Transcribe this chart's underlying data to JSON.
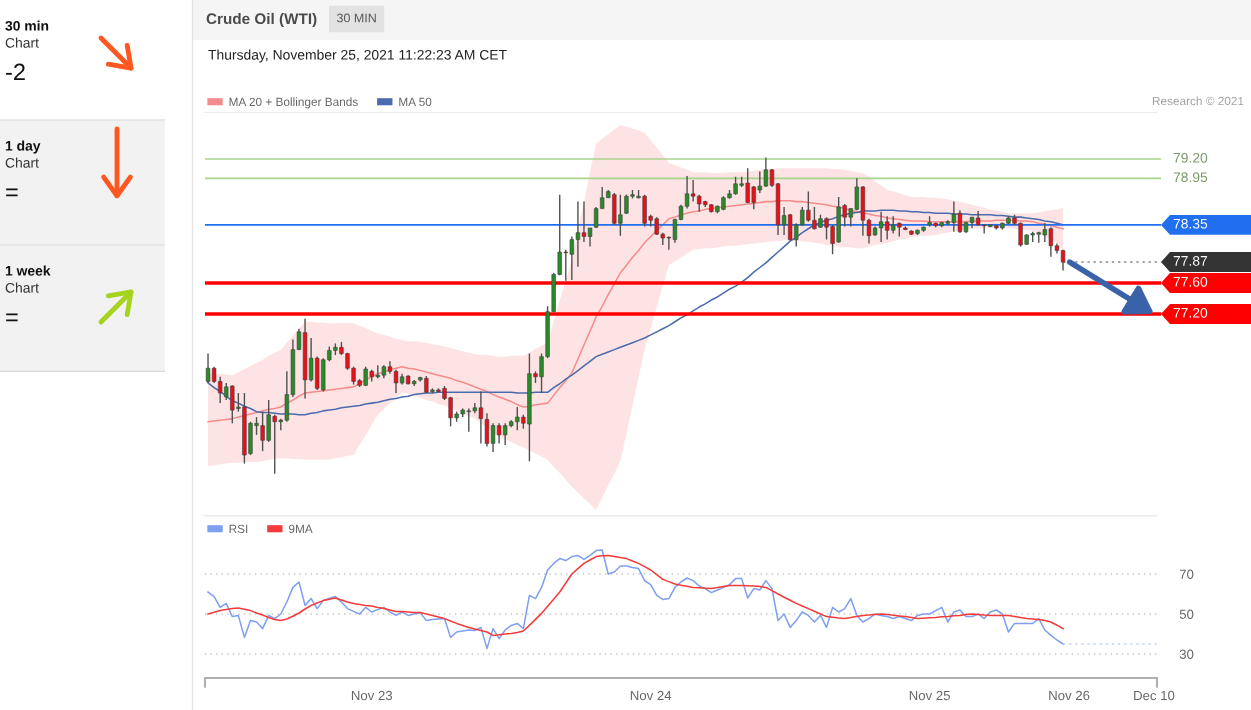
{
  "chart_data": [
    {
      "type": "other",
      "annotations": [
        "30 min",
        "Chart",
        "-2",
        "1 day",
        "Chart",
        "=",
        "1 week",
        "Chart",
        "="
      ]
    },
    {
      "type": "candlestick",
      "title": "Crude Oil (WTI)",
      "subtitle": "Thursday, November 25, 2021 11:22:23 AM CET",
      "annotations": [
        "30 MIN",
        "Research © 2021"
      ],
      "categories": [
        null,
        null,
        null,
        null,
        null,
        null,
        null,
        null,
        null,
        null,
        null,
        null,
        null,
        null,
        null,
        null,
        null,
        null,
        null,
        null,
        null,
        null,
        null,
        null,
        null,
        null,
        null,
        "Nov 23",
        null,
        null,
        null,
        null,
        null,
        null,
        null,
        null,
        null,
        null,
        null,
        null,
        null,
        null,
        null,
        null,
        null,
        null,
        null,
        null,
        null,
        null,
        null,
        null,
        null,
        null,
        null,
        null,
        null,
        null,
        null,
        null,
        null,
        null,
        null,
        null,
        null,
        null,
        null,
        null,
        null,
        null,
        null,
        null,
        null,
        "Nov 24",
        null,
        null,
        null,
        null,
        null,
        null,
        null,
        null,
        null,
        null,
        null,
        null,
        null,
        null,
        null,
        null,
        null,
        null,
        null,
        null,
        null,
        null,
        null,
        null,
        null,
        null,
        null,
        null,
        null,
        null,
        null,
        null,
        null,
        null,
        null,
        null,
        null,
        null,
        null,
        null,
        null,
        null,
        null,
        null,
        null,
        "Nov 25",
        null,
        null,
        null,
        null,
        null,
        null,
        null,
        null,
        null,
        null,
        null,
        null,
        null,
        null,
        null,
        null,
        null,
        null,
        null,
        null,
        null,
        null,
        "Nov 26",
        null,
        null,
        null,
        null,
        null,
        null,
        null,
        null,
        null,
        null,
        null,
        null,
        null,
        "Dec 10"
      ],
      "ohlc": [
        [
          76.33,
          76.69,
          76.31,
          76.5
        ],
        [
          76.5,
          76.52,
          76.31,
          76.33
        ],
        [
          76.33,
          76.39,
          76.05,
          76.18
        ],
        [
          76.13,
          76.31,
          76.09,
          76.26
        ],
        [
          76.27,
          76.28,
          75.79,
          75.96
        ],
        [
          75.98,
          76.18,
          75.94,
          76.0
        ],
        [
          76.0,
          76.18,
          75.27,
          75.38
        ],
        [
          75.4,
          75.81,
          75.38,
          75.79
        ],
        [
          75.76,
          75.87,
          75.64,
          75.79
        ],
        [
          75.76,
          75.94,
          75.43,
          75.57
        ],
        [
          75.57,
          76.09,
          75.55,
          75.9
        ],
        [
          75.88,
          75.9,
          75.14,
          75.81
        ],
        [
          75.81,
          75.85,
          75.7,
          75.83
        ],
        [
          75.83,
          76.46,
          75.81,
          76.16
        ],
        [
          76.16,
          76.87,
          76.13,
          76.74
        ],
        [
          76.74,
          77.01,
          76.74,
          76.97
        ],
        [
          76.96,
          77.14,
          76.11,
          76.35
        ],
        [
          76.35,
          76.89,
          76.33,
          76.63
        ],
        [
          76.63,
          76.65,
          76.22,
          76.24
        ],
        [
          76.22,
          76.63,
          76.2,
          76.61
        ],
        [
          76.61,
          76.78,
          76.59,
          76.73
        ],
        [
          76.73,
          76.82,
          76.67,
          76.77
        ],
        [
          76.77,
          76.84,
          76.67,
          76.69
        ],
        [
          76.69,
          76.7,
          76.48,
          76.5
        ],
        [
          76.5,
          76.52,
          76.29,
          76.33
        ],
        [
          76.34,
          76.36,
          76.26,
          76.28
        ],
        [
          76.28,
          76.52,
          76.27,
          76.49
        ],
        [
          76.46,
          76.48,
          76.33,
          76.39
        ],
        [
          76.39,
          76.54,
          76.37,
          76.41
        ],
        [
          76.41,
          76.54,
          76.37,
          76.52
        ],
        [
          76.52,
          76.59,
          76.43,
          76.46
        ],
        [
          76.46,
          76.48,
          76.18,
          76.31
        ],
        [
          76.31,
          76.43,
          76.29,
          76.39
        ],
        [
          76.4,
          76.41,
          76.29,
          76.3
        ],
        [
          76.3,
          76.35,
          76.27,
          76.33
        ],
        [
          76.35,
          76.39,
          76.33,
          76.38
        ],
        [
          76.37,
          76.4,
          76.18,
          76.19
        ],
        [
          76.2,
          76.24,
          76.18,
          76.22
        ],
        [
          76.22,
          76.24,
          76.19,
          76.2
        ],
        [
          76.24,
          76.27,
          76.09,
          76.11
        ],
        [
          76.12,
          76.13,
          75.75,
          75.86
        ],
        [
          75.86,
          75.94,
          75.81,
          75.91
        ],
        [
          75.91,
          75.98,
          75.87,
          75.96
        ],
        [
          75.94,
          75.98,
          75.68,
          75.95
        ],
        [
          75.95,
          76.05,
          75.92,
          75.99
        ],
        [
          75.99,
          76.2,
          75.53,
          75.85
        ],
        [
          75.84,
          75.92,
          75.49,
          75.53
        ],
        [
          75.53,
          75.79,
          75.42,
          75.76
        ],
        [
          75.76,
          75.79,
          75.53,
          75.64
        ],
        [
          75.64,
          75.79,
          75.51,
          75.76
        ],
        [
          75.76,
          75.83,
          75.74,
          75.81
        ],
        [
          75.81,
          76.0,
          75.7,
          75.87
        ],
        [
          75.87,
          75.9,
          75.72,
          75.79
        ],
        [
          75.78,
          76.69,
          75.3,
          76.43
        ],
        [
          76.43,
          76.46,
          76.31,
          76.39
        ],
        [
          76.39,
          76.69,
          76.18,
          76.65
        ],
        [
          76.65,
          77.3,
          76.63,
          77.23
        ],
        [
          77.23,
          77.73,
          77.22,
          77.71
        ],
        [
          77.71,
          78.74,
          77.7,
          78.0
        ],
        [
          78.0,
          78.03,
          77.63,
          77.99
        ],
        [
          77.97,
          78.2,
          77.64,
          78.16
        ],
        [
          78.16,
          78.65,
          77.81,
          78.25
        ],
        [
          78.25,
          78.65,
          78.13,
          78.2
        ],
        [
          78.2,
          78.31,
          78.07,
          78.31
        ],
        [
          78.32,
          78.58,
          78.31,
          78.56
        ],
        [
          78.56,
          78.84,
          78.56,
          78.7
        ],
        [
          78.7,
          78.8,
          78.7,
          78.78
        ],
        [
          78.74,
          78.76,
          78.35,
          78.37
        ],
        [
          78.37,
          78.74,
          78.21,
          78.48
        ],
        [
          78.5,
          78.74,
          78.49,
          78.72
        ],
        [
          78.72,
          78.8,
          78.69,
          78.74
        ],
        [
          78.7,
          78.8,
          78.69,
          78.72
        ],
        [
          78.72,
          78.74,
          78.33,
          78.37
        ],
        [
          78.46,
          78.48,
          78.33,
          78.41
        ],
        [
          78.43,
          78.45,
          78.22,
          78.23
        ],
        [
          78.23,
          78.25,
          78.09,
          78.18
        ],
        [
          78.19,
          78.2,
          78.03,
          78.18
        ],
        [
          78.16,
          78.43,
          78.12,
          78.42
        ],
        [
          78.42,
          78.61,
          78.41,
          78.59
        ],
        [
          78.59,
          78.98,
          78.56,
          78.75
        ],
        [
          78.75,
          78.93,
          78.65,
          78.72
        ],
        [
          78.72,
          78.74,
          78.52,
          78.62
        ],
        [
          78.65,
          78.66,
          78.58,
          78.61
        ],
        [
          78.61,
          78.62,
          78.51,
          78.52
        ],
        [
          78.52,
          78.6,
          78.5,
          78.59
        ],
        [
          78.55,
          78.72,
          78.54,
          78.7
        ],
        [
          78.7,
          78.8,
          78.69,
          78.75
        ],
        [
          78.75,
          78.97,
          78.74,
          78.88
        ],
        [
          78.86,
          78.97,
          78.84,
          78.88
        ],
        [
          78.89,
          79.08,
          78.63,
          78.64
        ],
        [
          78.84,
          78.85,
          78.55,
          78.64
        ],
        [
          78.8,
          79.04,
          78.76,
          78.85
        ],
        [
          78.85,
          79.22,
          78.84,
          79.06
        ],
        [
          79.06,
          79.07,
          78.84,
          78.86
        ],
        [
          78.88,
          78.89,
          78.22,
          78.35
        ],
        [
          78.35,
          78.58,
          78.22,
          78.47
        ],
        [
          78.48,
          78.49,
          78.15,
          78.16
        ],
        [
          78.16,
          78.37,
          78.07,
          78.35
        ],
        [
          78.35,
          78.58,
          78.34,
          78.54
        ],
        [
          78.54,
          78.78,
          78.39,
          78.41
        ],
        [
          78.41,
          78.58,
          78.29,
          78.3
        ],
        [
          78.32,
          78.48,
          78.31,
          78.43
        ],
        [
          78.43,
          78.45,
          78.16,
          78.32
        ],
        [
          78.33,
          78.35,
          77.97,
          78.11
        ],
        [
          78.13,
          78.71,
          78.12,
          78.58
        ],
        [
          78.6,
          78.62,
          78.33,
          78.45
        ],
        [
          78.45,
          78.56,
          78.33,
          78.56
        ],
        [
          78.55,
          78.95,
          78.54,
          78.84
        ],
        [
          78.84,
          78.85,
          78.21,
          78.41
        ],
        [
          78.41,
          78.43,
          78.11,
          78.21
        ],
        [
          78.22,
          78.33,
          78.21,
          78.31
        ],
        [
          78.31,
          78.52,
          78.13,
          78.39
        ],
        [
          78.39,
          78.46,
          78.16,
          78.28
        ],
        [
          78.28,
          78.46,
          78.24,
          78.35
        ],
        [
          78.37,
          78.38,
          78.2,
          78.32
        ],
        [
          78.31,
          78.33,
          78.28,
          78.29
        ],
        [
          78.27,
          78.28,
          78.22,
          78.23
        ],
        [
          78.24,
          78.29,
          78.22,
          78.28
        ],
        [
          78.28,
          78.33,
          78.26,
          78.32
        ],
        [
          78.35,
          78.46,
          78.33,
          78.38
        ],
        [
          78.37,
          78.38,
          78.32,
          78.34
        ],
        [
          78.34,
          78.39,
          78.32,
          78.38
        ],
        [
          78.37,
          78.41,
          78.35,
          78.39
        ],
        [
          78.38,
          78.65,
          78.26,
          78.49
        ],
        [
          78.5,
          78.54,
          78.25,
          78.26
        ],
        [
          78.26,
          78.39,
          78.25,
          78.38
        ],
        [
          78.38,
          78.45,
          78.31,
          78.45
        ],
        [
          78.44,
          78.53,
          78.34,
          78.35
        ],
        [
          78.35,
          78.36,
          78.24,
          78.34
        ],
        [
          78.33,
          78.36,
          78.32,
          78.35
        ],
        [
          78.34,
          78.35,
          78.29,
          78.31
        ],
        [
          78.31,
          78.38,
          78.29,
          78.37
        ],
        [
          78.37,
          78.46,
          78.36,
          78.44
        ],
        [
          78.44,
          78.48,
          78.35,
          78.37
        ],
        [
          78.37,
          78.38,
          78.07,
          78.09
        ],
        [
          78.1,
          78.23,
          78.09,
          78.22
        ],
        [
          78.22,
          78.26,
          78.13,
          78.24
        ],
        [
          78.23,
          78.26,
          78.12,
          78.25
        ],
        [
          78.22,
          78.37,
          78.13,
          78.29
        ],
        [
          78.3,
          78.32,
          77.94,
          78.08
        ],
        [
          78.08,
          78.11,
          77.98,
          78.02
        ],
        [
          78.02,
          78.03,
          77.76,
          77.87
        ],
        null,
        null,
        null,
        null,
        null,
        null,
        null,
        null,
        null,
        null,
        null,
        null,
        null,
        null,
        null
      ],
      "series": [
        {
          "name": "MA 20 + Bollinger Bands",
          "type": "line",
          "color": "#f58c8c",
          "values": [
            75.81,
            75.82,
            75.83,
            75.84,
            75.85,
            75.87,
            75.89,
            75.91,
            75.93,
            75.95,
            75.97,
            75.98,
            76.0,
            76.05,
            76.09,
            76.14,
            76.18,
            76.19,
            76.2,
            76.21,
            76.22,
            76.23,
            76.24,
            76.25,
            76.26,
            76.3,
            76.35,
            76.39,
            76.43,
            76.45,
            76.48,
            76.5,
            76.52,
            76.5,
            76.49,
            76.47,
            76.45,
            76.43,
            76.41,
            76.39,
            76.37,
            76.34,
            76.32,
            76.29,
            76.26,
            76.23,
            76.2,
            76.16,
            76.13,
            76.1,
            76.07,
            76.03,
            76.0,
            76.01,
            76.03,
            76.04,
            76.05,
            76.15,
            76.25,
            76.34,
            76.44,
            76.62,
            76.8,
            76.98,
            77.16,
            77.3,
            77.45,
            77.59,
            77.73,
            77.83,
            77.93,
            78.02,
            78.12,
            78.2,
            78.28,
            78.35,
            78.43,
            78.45,
            78.48,
            78.5,
            78.52,
            78.53,
            78.55,
            78.56,
            78.57,
            78.58,
            78.59,
            78.6,
            78.61,
            78.62,
            78.63,
            78.64,
            78.65,
            78.65,
            78.66,
            78.66,
            78.66,
            78.65,
            78.65,
            78.64,
            78.63,
            78.62,
            78.61,
            78.59,
            78.58,
            78.56,
            78.54,
            78.52,
            78.5,
            78.49,
            78.47,
            78.46,
            78.44,
            78.43,
            78.42,
            78.41,
            78.4,
            78.4,
            78.4,
            78.39,
            78.39,
            78.39,
            78.39,
            78.39,
            78.39,
            78.39,
            78.4,
            78.4,
            78.4,
            78.4,
            78.41,
            78.41,
            78.41,
            78.41,
            78.4,
            78.4,
            78.39,
            78.37,
            78.36,
            78.34,
            78.32,
            78.3,
            null,
            null,
            null,
            null,
            null,
            null,
            null,
            null,
            null,
            null,
            null,
            null,
            null,
            null,
            null
          ],
          "upper": [
            76.44,
            76.43,
            76.43,
            76.42,
            76.41,
            76.45,
            76.49,
            76.53,
            76.57,
            76.61,
            76.66,
            76.7,
            76.74,
            76.83,
            76.92,
            77.01,
            77.1,
            77.1,
            77.09,
            77.09,
            77.08,
            77.08,
            77.08,
            77.08,
            77.08,
            77.05,
            77.02,
            76.98,
            76.95,
            76.93,
            76.91,
            76.88,
            76.86,
            76.85,
            76.85,
            76.84,
            76.83,
            76.81,
            76.8,
            76.78,
            76.76,
            76.74,
            76.72,
            76.7,
            76.68,
            76.67,
            76.67,
            76.66,
            76.65,
            76.65,
            76.66,
            76.66,
            76.66,
            76.7,
            76.75,
            76.79,
            76.83,
            77.1,
            77.37,
            77.63,
            77.9,
            78.28,
            78.65,
            79.03,
            79.4,
            79.46,
            79.52,
            79.58,
            79.64,
            79.62,
            79.59,
            79.57,
            79.54,
            79.44,
            79.35,
            79.25,
            79.15,
            79.12,
            79.09,
            79.06,
            79.03,
            79.03,
            79.03,
            79.02,
            79.02,
            79.02,
            79.03,
            79.03,
            79.03,
            79.04,
            79.05,
            79.06,
            79.07,
            79.07,
            79.08,
            79.08,
            79.08,
            79.08,
            79.08,
            79.08,
            79.08,
            79.08,
            79.08,
            79.07,
            79.07,
            79.06,
            79.05,
            79.03,
            79.02,
            78.97,
            78.91,
            78.86,
            78.8,
            78.78,
            78.76,
            78.73,
            78.71,
            78.71,
            78.71,
            78.7,
            78.7,
            78.69,
            78.68,
            78.66,
            78.65,
            78.63,
            78.61,
            78.59,
            78.57,
            78.55,
            78.54,
            78.52,
            78.5,
            78.5,
            78.5,
            78.5,
            78.5,
            78.51,
            78.53,
            78.54,
            78.55,
            78.57,
            null,
            null,
            null,
            null,
            null,
            null,
            null,
            null,
            null,
            null,
            null,
            null,
            null,
            null,
            null
          ],
          "lower": [
            75.24,
            75.25,
            75.26,
            75.27,
            75.28,
            75.28,
            75.29,
            75.29,
            75.29,
            75.3,
            75.32,
            75.33,
            75.34,
            75.34,
            75.33,
            75.33,
            75.32,
            75.32,
            75.32,
            75.32,
            75.32,
            75.34,
            75.35,
            75.37,
            75.38,
            75.51,
            75.64,
            75.77,
            75.9,
            75.97,
            76.05,
            76.12,
            76.19,
            76.17,
            76.14,
            76.12,
            76.09,
            76.07,
            76.04,
            76.02,
            75.99,
            75.96,
            75.92,
            75.89,
            75.85,
            75.79,
            75.73,
            75.67,
            75.61,
            75.58,
            75.55,
            75.51,
            75.48,
            75.44,
            75.4,
            75.36,
            75.32,
            75.23,
            75.15,
            75.06,
            74.97,
            74.9,
            74.82,
            74.75,
            74.67,
            74.83,
            74.99,
            75.14,
            75.3,
            75.66,
            76.02,
            76.38,
            76.74,
            77.01,
            77.29,
            77.56,
            77.83,
            77.88,
            77.93,
            77.98,
            78.03,
            78.04,
            78.05,
            78.05,
            78.06,
            78.07,
            78.08,
            78.08,
            78.09,
            78.1,
            78.11,
            78.12,
            78.13,
            78.14,
            78.14,
            78.15,
            78.15,
            78.14,
            78.14,
            78.13,
            78.12,
            78.11,
            78.09,
            78.08,
            78.06,
            78.06,
            78.06,
            78.05,
            78.05,
            78.07,
            78.09,
            78.1,
            78.12,
            78.14,
            78.16,
            78.17,
            78.19,
            78.2,
            78.21,
            78.21,
            78.22,
            78.24,
            78.25,
            78.27,
            78.28,
            78.29,
            78.3,
            78.3,
            78.31,
            78.31,
            78.31,
            78.31,
            78.31,
            78.3,
            78.29,
            78.28,
            78.27,
            78.23,
            78.2,
            78.16,
            78.12,
            78.03,
            null,
            null,
            null,
            null,
            null,
            null,
            null,
            null,
            null,
            null,
            null,
            null,
            null,
            null,
            null
          ]
        },
        {
          "name": "MA 50",
          "type": "line",
          "color": "#4a6cae",
          "values": [
            76.31,
            76.25,
            76.2,
            76.14,
            76.08,
            76.05,
            76.01,
            75.98,
            75.94,
            75.93,
            75.93,
            75.92,
            75.91,
            75.91,
            75.91,
            75.9,
            75.9,
            75.92,
            75.93,
            75.95,
            75.96,
            75.97,
            75.99,
            76.0,
            76.01,
            76.02,
            76.04,
            76.05,
            76.06,
            76.08,
            76.1,
            76.11,
            76.13,
            76.14,
            76.16,
            76.17,
            76.18,
            76.18,
            76.19,
            76.19,
            76.19,
            76.19,
            76.19,
            76.19,
            76.19,
            76.19,
            76.19,
            76.19,
            76.19,
            76.19,
            76.19,
            76.18,
            76.18,
            76.18,
            76.19,
            76.19,
            76.19,
            76.25,
            76.3,
            76.36,
            76.41,
            76.47,
            76.53,
            76.59,
            76.65,
            76.68,
            76.71,
            76.74,
            76.77,
            76.8,
            76.83,
            76.86,
            76.89,
            76.93,
            76.97,
            77.01,
            77.05,
            77.1,
            77.15,
            77.19,
            77.24,
            77.29,
            77.33,
            77.38,
            77.42,
            77.47,
            77.52,
            77.56,
            77.61,
            77.67,
            77.74,
            77.8,
            77.86,
            77.93,
            78.0,
            78.07,
            78.14,
            78.19,
            78.25,
            78.3,
            78.35,
            78.38,
            78.41,
            78.43,
            78.46,
            78.48,
            78.5,
            78.51,
            78.53,
            78.53,
            78.53,
            78.54,
            78.54,
            78.54,
            78.53,
            78.53,
            78.52,
            78.52,
            78.51,
            78.51,
            78.5,
            78.5,
            78.5,
            78.49,
            78.49,
            78.49,
            78.48,
            78.48,
            78.48,
            78.48,
            78.47,
            78.47,
            78.46,
            78.45,
            78.45,
            78.44,
            78.43,
            78.42,
            78.4,
            78.39,
            78.37,
            78.35,
            null,
            null,
            null,
            null,
            null,
            null,
            null,
            null,
            null,
            null,
            null,
            null,
            null,
            null,
            null
          ]
        }
      ],
      "ylim": [
        74.6,
        79.8
      ],
      "ref_lines": [
        {
          "axis": "y",
          "value": 79.2,
          "label": "79.20",
          "color": "#a8d48e"
        },
        {
          "axis": "y",
          "value": 78.95,
          "label": "78.95",
          "color": "#a8d48e"
        },
        {
          "axis": "y",
          "value": 78.35,
          "label": "78.35",
          "color": "#1f6ff0"
        },
        {
          "axis": "y",
          "value": 77.87,
          "label": "77.87",
          "color": "#333333",
          "line_style": "dotted"
        },
        {
          "axis": "y",
          "value": 77.6,
          "label": "77.60",
          "color": "#ff0000"
        },
        {
          "axis": "y",
          "value": 77.2,
          "label": "77.20",
          "color": "#ff0000"
        }
      ],
      "legend": "top left",
      "tick_labels": false
    },
    {
      "type": "line",
      "categories": [
        null,
        null,
        null,
        null,
        null,
        null,
        null,
        null,
        null,
        null,
        null,
        null,
        null,
        null,
        null,
        null,
        null,
        null,
        null,
        null,
        null,
        null,
        null,
        null,
        null,
        null,
        null,
        "Nov 23",
        null,
        null,
        null,
        null,
        null,
        null,
        null,
        null,
        null,
        null,
        null,
        null,
        null,
        null,
        null,
        null,
        null,
        null,
        null,
        null,
        null,
        null,
        null,
        null,
        null,
        null,
        null,
        null,
        null,
        null,
        null,
        null,
        null,
        null,
        null,
        null,
        null,
        null,
        null,
        null,
        null,
        null,
        null,
        null,
        null,
        "Nov 24",
        null,
        null,
        null,
        null,
        null,
        null,
        null,
        null,
        null,
        null,
        null,
        null,
        null,
        null,
        null,
        null,
        null,
        null,
        null,
        null,
        null,
        null,
        null,
        null,
        null,
        null,
        null,
        null,
        null,
        null,
        null,
        null,
        null,
        null,
        null,
        null,
        null,
        null,
        null,
        null,
        null,
        null,
        null,
        null,
        null,
        "Nov 25",
        null,
        null,
        null,
        null,
        null,
        null,
        null,
        null,
        null,
        null,
        null,
        null,
        null,
        null,
        null,
        null,
        null,
        null,
        null,
        null,
        null,
        null,
        "Nov 26",
        null,
        null,
        null,
        null,
        null,
        null,
        null,
        null,
        null,
        null,
        null,
        null,
        null,
        "Dec 10"
      ],
      "series": [
        {
          "name": "RSI",
          "color": "#7f9ff0",
          "values": [
            61,
            58.7,
            53.3,
            55.3,
            48.7,
            49.3,
            38.3,
            46.7,
            46,
            42.7,
            49.3,
            47.7,
            50,
            56,
            63.3,
            66,
            54.3,
            57.7,
            52.7,
            56.7,
            57.7,
            58.7,
            56,
            52.7,
            51.3,
            50,
            53.3,
            51,
            52.2,
            53.3,
            51,
            49.3,
            51,
            49.3,
            50,
            50.7,
            46.7,
            47.3,
            47.5,
            47.7,
            38.3,
            41,
            41.5,
            42,
            41.7,
            43.3,
            32.7,
            42.7,
            37.7,
            42,
            44.3,
            45.3,
            42.7,
            59.3,
            57.7,
            63.3,
            72,
            75.3,
            77.7,
            76.7,
            78.7,
            79.3,
            77.3,
            79.3,
            81.7,
            82,
            70,
            71,
            74,
            74,
            73.3,
            72.7,
            66.7,
            64.7,
            59.3,
            57.3,
            57.7,
            63.3,
            66,
            68,
            66.7,
            64,
            62.7,
            60.7,
            62,
            63.3,
            64.7,
            67.7,
            67.7,
            58,
            62.7,
            62,
            66.7,
            62.7,
            46.7,
            50,
            43.3,
            46.7,
            51,
            49.3,
            46,
            49.3,
            43.3,
            53.3,
            51,
            52.7,
            57.7,
            49.3,
            46,
            47.7,
            50,
            49.3,
            48.7,
            47.7,
            48.7,
            47.7,
            46.7,
            49.3,
            50,
            50,
            51.7,
            53.3,
            46,
            51,
            52,
            48.7,
            48.7,
            50,
            47.7,
            51,
            52,
            50,
            41,
            45.3,
            45.3,
            45.3,
            45.3,
            47.7,
            42,
            39.3,
            37,
            35,
            null,
            null,
            null,
            null,
            null,
            null,
            null,
            null,
            null,
            null,
            null,
            null,
            null,
            null,
            null
          ]
        },
        {
          "name": "9MA",
          "color": "#f43b3b",
          "values": [
            50,
            50.9,
            51.7,
            52.2,
            52.7,
            53,
            52.4,
            51.7,
            50.5,
            49.5,
            48.2,
            47.2,
            46.7,
            47.5,
            48.9,
            50.5,
            52.5,
            54.3,
            55.5,
            56.7,
            57.4,
            58,
            57,
            56,
            55.3,
            54.7,
            54.3,
            54,
            53.3,
            52.7,
            52,
            51.3,
            51.2,
            51,
            50.8,
            50.7,
            50,
            49.3,
            48.5,
            47.7,
            46.5,
            45.3,
            44.3,
            43.3,
            42.5,
            41.8,
            41,
            39.3,
            39.6,
            40,
            40.3,
            40.7,
            41.5,
            44.3,
            47.3,
            50.3,
            53.9,
            57.4,
            61,
            65.5,
            70,
            72.7,
            75.3,
            77,
            78.7,
            79.1,
            79.3,
            78.8,
            78.2,
            77.7,
            76.5,
            75.3,
            73.7,
            72,
            69.7,
            67.3,
            66.2,
            65,
            64.4,
            63.9,
            63.3,
            63.1,
            62.9,
            62.7,
            63.2,
            63.8,
            64.3,
            64.2,
            64.2,
            64.1,
            64,
            63.7,
            63.3,
            61.7,
            60,
            58.4,
            56.9,
            55.3,
            54,
            52.7,
            51.4,
            50,
            48.7,
            48.4,
            48,
            47.7,
            48.2,
            48.8,
            49.3,
            49.5,
            49.8,
            50,
            49.7,
            49.4,
            49,
            48.7,
            48.2,
            47.7,
            47.9,
            48.1,
            48.3,
            48.6,
            48.8,
            49.1,
            49.3,
            49.7,
            50,
            49.8,
            49.5,
            49.3,
            49.3,
            49.3,
            49.3,
            48.8,
            48.2,
            47.7,
            47.5,
            47.3,
            46.7,
            46,
            44.4,
            42.7,
            null,
            null,
            null,
            null,
            null,
            null,
            null,
            null,
            null,
            null,
            null,
            null,
            null,
            null,
            null
          ]
        }
      ],
      "ylim": [
        18,
        99
      ],
      "yticks": [
        30,
        50,
        70
      ],
      "grid": "y",
      "legend": "top left",
      "ref_lines": [
        {
          "axis": "y",
          "value": 35,
          "color": "#9db2f4",
          "line_style": "dotted"
        }
      ]
    }
  ]
}
